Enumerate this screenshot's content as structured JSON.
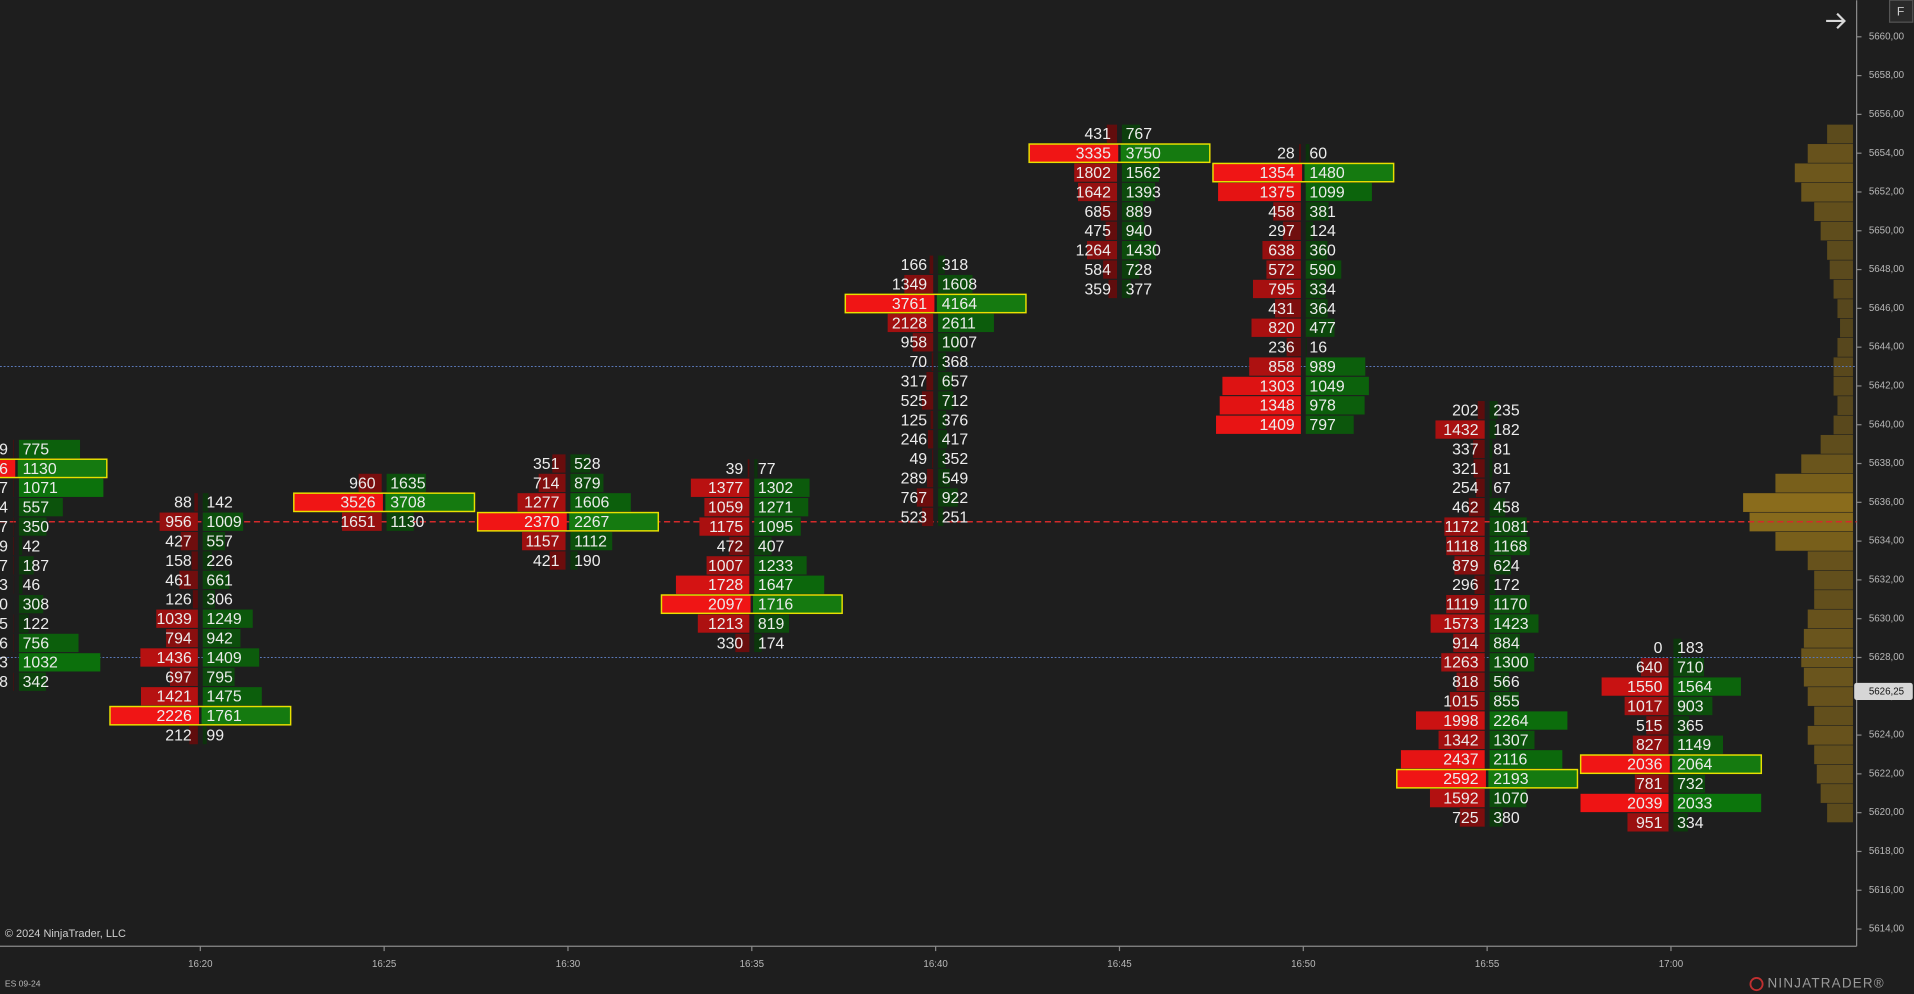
{
  "chart_data": {
    "type": "footprint",
    "yticks": [
      {
        "value": 5660,
        "label": "5660,00"
      },
      {
        "value": 5658,
        "label": "5658,00"
      },
      {
        "value": 5656,
        "label": "5656,00"
      },
      {
        "value": 5654,
        "label": "5654,00"
      },
      {
        "value": 5652,
        "label": "5652,00"
      },
      {
        "value": 5650,
        "label": "5650,00"
      },
      {
        "value": 5648,
        "label": "5648,00"
      },
      {
        "value": 5646,
        "label": "5646,00"
      },
      {
        "value": 5644,
        "label": "5644,00"
      },
      {
        "value": 5642,
        "label": "5642,00"
      },
      {
        "value": 5640,
        "label": "5640,00"
      },
      {
        "value": 5638,
        "label": "5638,00"
      },
      {
        "value": 5636,
        "label": "5636,00"
      },
      {
        "value": 5634,
        "label": "5634,00"
      },
      {
        "value": 5632,
        "label": "5632,00"
      },
      {
        "value": 5630,
        "label": "5630,00"
      },
      {
        "value": 5628,
        "label": "5628,00"
      },
      {
        "value": 5626,
        "label": "5626,00"
      },
      {
        "value": 5624,
        "label": "5624,00"
      },
      {
        "value": 5622,
        "label": "5622,00"
      },
      {
        "value": 5620,
        "label": "5620,00"
      },
      {
        "value": 5618,
        "label": "5618,00"
      },
      {
        "value": 5616,
        "label": "5616,00"
      },
      {
        "value": 5614,
        "label": "5614,00"
      }
    ],
    "price_marker": {
      "value": 5626.25,
      "label": "5626,25"
    },
    "bid_color": "#f01515",
    "ask_color": "#157a10",
    "highlight_color": "#e8e000",
    "lines": [
      {
        "price": 5635,
        "color": "#d42a2a",
        "style": "dashed"
      },
      {
        "price": 5643,
        "color": "#5a78b8",
        "style": "dotted"
      },
      {
        "price": 5628,
        "color": "#5a78b8",
        "style": "dotted"
      }
    ],
    "columns": [
      {
        "time": null,
        "prices": [
          5638.75,
          5637.75,
          5636.75,
          5635.75,
          5634.75,
          5633.75,
          5632.75,
          5631.75,
          5630.75,
          5629.75,
          5628.75,
          5627.75,
          5626.75
        ],
        "bid": [
          9,
          6,
          7,
          4,
          7,
          9,
          7,
          3,
          0,
          5,
          6,
          3,
          8
        ],
        "ask": [
          775,
          1130,
          1071,
          557,
          350,
          42,
          187,
          46,
          308,
          122,
          756,
          1032,
          342
        ]
      },
      {
        "time": "16:20",
        "prices": [
          5636,
          5635,
          5634,
          5633,
          5632,
          5631,
          5630,
          5629,
          5628,
          5627,
          5626,
          5625,
          5624
        ],
        "bid": [
          88,
          956,
          427,
          158,
          461,
          126,
          1039,
          794,
          1436,
          697,
          1421,
          2226,
          212
        ],
        "ask": [
          142,
          1009,
          557,
          226,
          661,
          306,
          1249,
          942,
          1409,
          795,
          1475,
          1761,
          99
        ]
      },
      {
        "time": "16:25",
        "prices": [
          5637,
          5636,
          5635
        ],
        "bid": [
          960,
          3526,
          1651
        ],
        "ask": [
          1635,
          3708,
          1130
        ]
      },
      {
        "time": "16:30",
        "prices": [
          5638,
          5637,
          5636,
          5635,
          5634,
          5633
        ],
        "bid": [
          351,
          714,
          1277,
          2370,
          1157,
          421
        ],
        "ask": [
          528,
          879,
          1606,
          2267,
          1112,
          190
        ]
      },
      {
        "time": "16:35",
        "prices": [
          5637.75,
          5636.75,
          5635.75,
          5634.75,
          5633.75,
          5632.75,
          5631.75,
          5630.75,
          5629.75,
          5628.75
        ],
        "bid": [
          39,
          1377,
          1059,
          1175,
          472,
          1007,
          1728,
          2097,
          1213,
          330
        ],
        "ask": [
          77,
          1302,
          1271,
          1095,
          407,
          1233,
          1647,
          1716,
          819,
          174
        ]
      },
      {
        "time": "16:40",
        "prices": [
          5648.25,
          5647.25,
          5646.25,
          5645.25,
          5644.25,
          5643.25,
          5642.25,
          5641.25,
          5640.25,
          5639.25,
          5638.25,
          5637.25,
          5636.25,
          5635.25
        ],
        "bid": [
          166,
          1349,
          3761,
          2128,
          958,
          70,
          317,
          525,
          125,
          246,
          49,
          289,
          767,
          523
        ],
        "ask": [
          318,
          1608,
          4164,
          2611,
          1007,
          368,
          657,
          712,
          376,
          417,
          352,
          549,
          922,
          251
        ]
      },
      {
        "time": "16:45",
        "prices": [
          5655,
          5654,
          5653,
          5652,
          5651,
          5650,
          5649,
          5648,
          5647
        ],
        "bid": [
          431,
          3335,
          1802,
          1642,
          685,
          475,
          1264,
          584,
          359
        ],
        "ask": [
          767,
          3750,
          1562,
          1393,
          889,
          940,
          1430,
          728,
          377
        ]
      },
      {
        "time": "16:50",
        "prices": [
          5654,
          5653,
          5652,
          5651,
          5650,
          5649,
          5648,
          5647,
          5646,
          5645,
          5644,
          5643,
          5642,
          5641,
          5640
        ],
        "bid": [
          28,
          1354,
          1375,
          458,
          297,
          638,
          572,
          795,
          431,
          820,
          236,
          858,
          1303,
          1348,
          1409
        ],
        "ask": [
          60,
          1480,
          1099,
          381,
          124,
          360,
          590,
          334,
          364,
          477,
          16,
          989,
          1049,
          978,
          797
        ]
      },
      {
        "time": "16:55",
        "prices": [
          5640.75,
          5639.75,
          5638.75,
          5637.75,
          5636.75,
          5635.75,
          5634.75,
          5633.75,
          5632.75,
          5631.75,
          5630.75,
          5629.75,
          5628.75,
          5627.75,
          5626.75,
          5625.75,
          5624.75,
          5623.75,
          5622.75,
          5621.75,
          5620.75,
          5619.75
        ],
        "bid": [
          202,
          1432,
          337,
          321,
          254,
          462,
          1172,
          1118,
          879,
          296,
          1119,
          1573,
          914,
          1263,
          818,
          1015,
          1998,
          1342,
          2437,
          2592,
          1592,
          725
        ],
        "ask": [
          235,
          182,
          81,
          81,
          67,
          458,
          1081,
          1168,
          624,
          172,
          1170,
          1423,
          884,
          1300,
          566,
          855,
          2264,
          1307,
          2116,
          2193,
          1070,
          380
        ]
      },
      {
        "time": "17:00",
        "prices": [
          5628.5,
          5627.5,
          5626.5,
          5625.5,
          5624.5,
          5623.5,
          5622.5,
          5621.5,
          5620.5,
          5619.5
        ],
        "bid": [
          0,
          640,
          1550,
          1017,
          515,
          827,
          2036,
          781,
          2039,
          951
        ],
        "ask": [
          183,
          710,
          1564,
          903,
          365,
          1149,
          2064,
          732,
          2033,
          334
        ]
      }
    ],
    "volume_profile": {
      "color": "#8a6c1c",
      "prices": [
        5655,
        5654,
        5653,
        5652,
        5651,
        5650,
        5649,
        5648,
        5647,
        5646,
        5645,
        5644,
        5643,
        5642,
        5641,
        5640,
        5639,
        5638,
        5637,
        5636,
        5635,
        5634,
        5633,
        5632,
        5631,
        5630,
        5629,
        5628,
        5627,
        5626,
        5625,
        5624,
        5623,
        5622,
        5621,
        5620
      ],
      "values": [
        20,
        35,
        45,
        40,
        30,
        25,
        20,
        18,
        15,
        12,
        10,
        12,
        15,
        15,
        12,
        15,
        25,
        40,
        60,
        85,
        80,
        60,
        35,
        30,
        30,
        35,
        38,
        40,
        38,
        35,
        30,
        35,
        30,
        28,
        25,
        20
      ]
    }
  },
  "footer": {
    "copyright": "© 2024 NinjaTrader, LLC",
    "instrument": "ES 09-24",
    "brand": "NINJATRADER®"
  },
  "toolbar": {
    "button": "F"
  }
}
